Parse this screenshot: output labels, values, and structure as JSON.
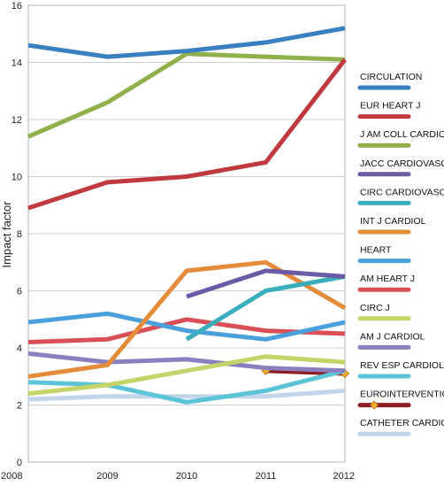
{
  "chart_data": {
    "type": "line",
    "ylabel": "Impact factor",
    "xlabel": "",
    "x": [
      2008,
      2009,
      2010,
      2011,
      2012
    ],
    "ylim": [
      0,
      16
    ],
    "yticks": [
      0,
      2,
      4,
      6,
      8,
      10,
      12,
      14,
      16
    ],
    "grid": "horizontal",
    "legend_position": "right",
    "series": [
      {
        "name": "CIRCULATION",
        "color": "#3a7fbf",
        "values": [
          14.6,
          14.2,
          14.4,
          14.7,
          15.2
        ]
      },
      {
        "name": "EUR HEART J",
        "color": "#c0393f",
        "values": [
          8.9,
          9.8,
          10.0,
          10.5,
          14.1
        ]
      },
      {
        "name": "J AM COLL CARDIOL",
        "color": "#8fb04a",
        "values": [
          11.4,
          12.6,
          14.3,
          14.2,
          14.1
        ]
      },
      {
        "name": "JACC CARDIOVASC INTE",
        "color": "#6b5aa6",
        "values": [
          null,
          null,
          5.8,
          6.7,
          6.5
        ]
      },
      {
        "name": "CIRC CARDIOVASC INTE",
        "color": "#3aaebc",
        "values": [
          null,
          null,
          4.3,
          6.0,
          6.5
        ]
      },
      {
        "name": "INT J CARDIOL",
        "color": "#e58c3a",
        "values": [
          3.0,
          3.4,
          6.7,
          7.0,
          5.4
        ]
      },
      {
        "name": "HEART",
        "color": "#4aa0dc",
        "values": [
          4.9,
          5.2,
          4.6,
          4.3,
          4.9
        ]
      },
      {
        "name": "AM HEART J",
        "color": "#d94f55",
        "values": [
          4.2,
          4.3,
          5.0,
          4.6,
          4.5
        ]
      },
      {
        "name": "CIRC J",
        "color": "#c5d46a",
        "values": [
          2.4,
          2.7,
          3.2,
          3.7,
          3.5
        ]
      },
      {
        "name": "AM J CARDIOL",
        "color": "#8c7fbf",
        "values": [
          3.8,
          3.5,
          3.6,
          3.3,
          3.2
        ]
      },
      {
        "name": "REV ESP CARDIOL",
        "color": "#5bc4d6",
        "values": [
          2.8,
          2.7,
          2.1,
          2.5,
          3.2
        ]
      },
      {
        "name": "EUROINTERVENTION",
        "color": "#8e1c22",
        "marker_color": "#f0b02a",
        "values": [
          null,
          null,
          null,
          3.2,
          3.1
        ]
      },
      {
        "name": "CATHETER CARDIO INTE",
        "color": "#c3d5ea",
        "values": [
          2.2,
          2.3,
          2.3,
          2.3,
          2.5
        ]
      }
    ]
  }
}
